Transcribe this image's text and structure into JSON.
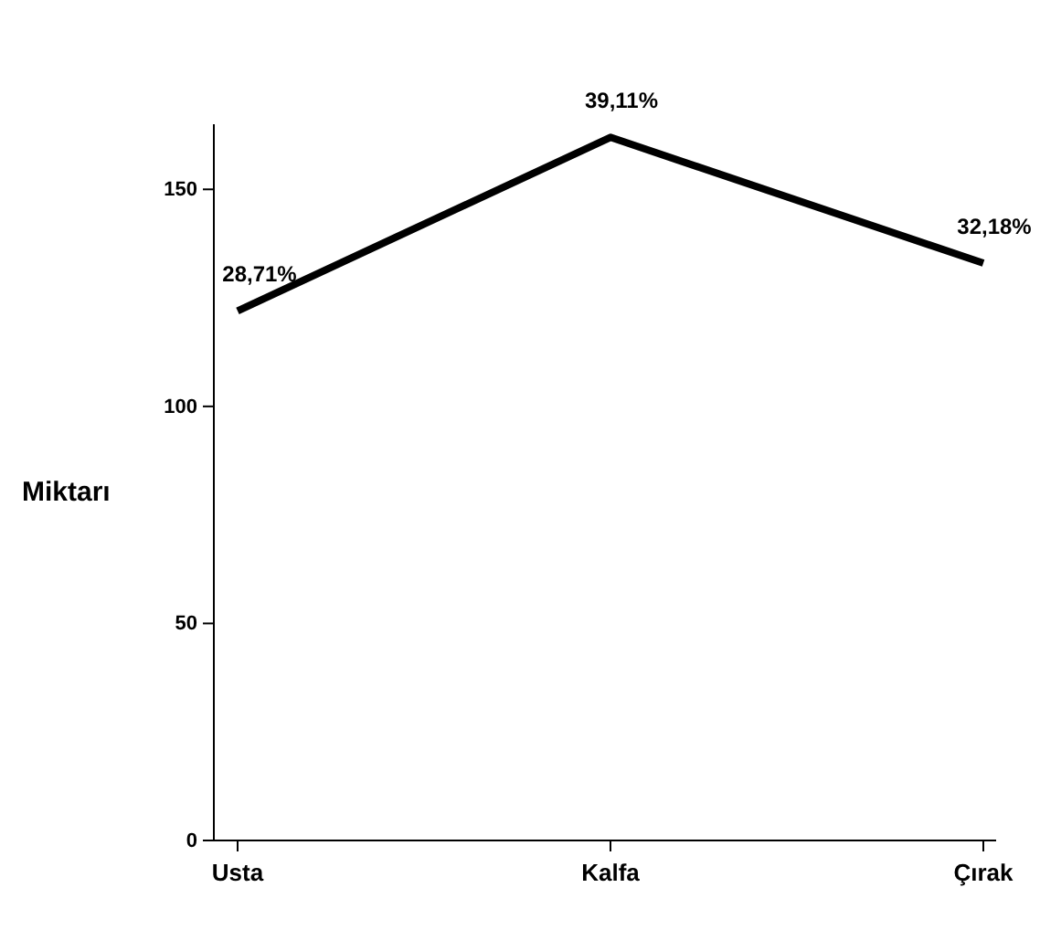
{
  "chart_data": {
    "type": "line",
    "ylabel": "Miktarı",
    "categories": [
      "Usta",
      "Kalfa",
      "Çırak"
    ],
    "series": [
      {
        "color": "#000000",
        "values": [
          122,
          162,
          133
        ]
      }
    ],
    "annotations": [
      {
        "text": "28,71%",
        "x": "Usta",
        "y": 122
      },
      {
        "text": "39,11%",
        "x": "Kalfa",
        "y": 162
      },
      {
        "text": "32,18%",
        "x": "Çırak",
        "y": 133
      }
    ],
    "ylim": [
      0,
      165
    ],
    "yticks": [
      0,
      50,
      100,
      150
    ],
    "marker": "none"
  }
}
